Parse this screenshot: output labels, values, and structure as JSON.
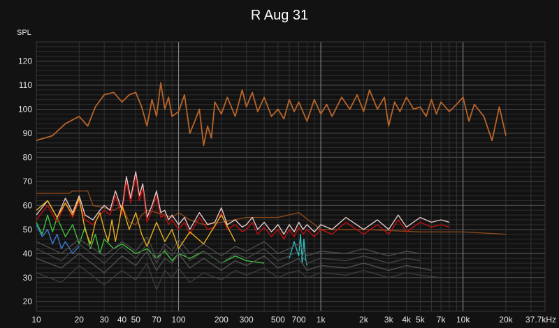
{
  "chart_data": {
    "type": "line",
    "title": "R Aug 31",
    "ylabel": "SPL",
    "xlabel": "",
    "xscale": "log",
    "xlim": [
      10,
      37700
    ],
    "ylim": [
      16,
      128
    ],
    "yticks": [
      120,
      110,
      100,
      90,
      80,
      70,
      60,
      50,
      40,
      30,
      20
    ],
    "xticks": [
      {
        "value": 10,
        "label": "10"
      },
      {
        "value": 20,
        "label": "20"
      },
      {
        "value": 30,
        "label": "30"
      },
      {
        "value": 40,
        "label": "40"
      },
      {
        "value": 50,
        "label": "50"
      },
      {
        "value": 70,
        "label": "70"
      },
      {
        "value": 100,
        "label": "100"
      },
      {
        "value": 200,
        "label": "200"
      },
      {
        "value": 300,
        "label": "300"
      },
      {
        "value": 500,
        "label": "500"
      },
      {
        "value": 700,
        "label": "700"
      },
      {
        "value": 1000,
        "label": "1k"
      },
      {
        "value": 2000,
        "label": "2k"
      },
      {
        "value": 3000,
        "label": "3k"
      },
      {
        "value": 4000,
        "label": "4k"
      },
      {
        "value": 5000,
        "label": "5k"
      },
      {
        "value": 7000,
        "label": "7k"
      },
      {
        "value": 10000,
        "label": "10k"
      },
      {
        "value": 20000,
        "label": "20k"
      },
      {
        "value": 37700,
        "label": "37.7kHz"
      }
    ],
    "grid": true,
    "legend": "none",
    "series": [
      {
        "color": "#b8642a",
        "x": [
          10,
          13,
          16,
          20,
          23,
          26,
          30,
          35,
          40,
          45,
          50,
          55,
          60,
          65,
          70,
          75,
          80,
          85,
          90,
          100,
          110,
          120,
          130,
          140,
          150,
          160,
          170,
          180,
          200,
          220,
          250,
          280,
          300,
          330,
          360,
          400,
          450,
          500,
          550,
          600,
          650,
          700,
          800,
          900,
          1000,
          1100,
          1200,
          1400,
          1600,
          1800,
          2000,
          2200,
          2500,
          2800,
          3000,
          3300,
          3600,
          4000,
          4500,
          5000,
          5500,
          6000,
          6500,
          7000,
          8000,
          9000,
          10000,
          11000,
          12000,
          14000,
          16000,
          18000,
          20000
        ],
        "values": [
          87,
          89,
          94,
          97,
          93,
          101,
          106,
          107,
          103,
          106,
          107,
          101,
          93,
          104,
          97,
          111,
          100,
          105,
          97,
          99,
          106,
          90,
          95,
          100,
          85,
          93,
          88,
          103,
          98,
          105,
          97,
          108,
          101,
          107,
          99,
          105,
          97,
          100,
          96,
          104,
          99,
          103,
          95,
          104,
          98,
          102,
          97,
          105,
          100,
          106,
          99,
          108,
          100,
          105,
          93,
          103,
          99,
          105,
          100,
          101,
          97,
          104,
          98,
          103,
          99,
          102,
          105,
          95,
          102,
          97,
          87,
          101,
          89
        ]
      },
      {
        "color": "#8b4a1a",
        "x": [
          10,
          14,
          17,
          18,
          20,
          22,
          23,
          25,
          30,
          35,
          40,
          45,
          50,
          55,
          60,
          70,
          80,
          90,
          100,
          120,
          150,
          200,
          300,
          500,
          700,
          1000,
          2000,
          5000,
          10000,
          20000
        ],
        "values": [
          65,
          65,
          65,
          66,
          66,
          66,
          66,
          60,
          59,
          58,
          60,
          53,
          52,
          56,
          58,
          57,
          56,
          55,
          57,
          54,
          52,
          53,
          55,
          55,
          57,
          50,
          50,
          49,
          49,
          48
        ]
      },
      {
        "color": "#e8c8c8",
        "x": [
          10,
          12,
          14,
          16,
          18,
          20,
          22,
          25,
          28,
          30,
          33,
          36,
          40,
          43,
          46,
          50,
          53,
          56,
          60,
          65,
          70,
          75,
          80,
          85,
          90,
          100,
          110,
          120,
          140,
          160,
          180,
          200,
          220,
          250,
          280,
          300,
          330,
          360,
          400,
          450,
          500,
          550,
          600,
          650,
          700,
          750,
          800,
          900,
          1000,
          1200,
          1500,
          2000,
          2500,
          3000,
          3500,
          4000,
          5000,
          6000,
          7000,
          8000
        ],
        "values": [
          56,
          62,
          55,
          63,
          57,
          64,
          56,
          54,
          58,
          60,
          58,
          66,
          58,
          72,
          63,
          74,
          64,
          69,
          55,
          60,
          66,
          57,
          58,
          54,
          56,
          52,
          55,
          50,
          57,
          52,
          53,
          59,
          52,
          54,
          51,
          52,
          55,
          50,
          53,
          49,
          52,
          48,
          52,
          49,
          53,
          50,
          52,
          49,
          52,
          50,
          55,
          50,
          54,
          50,
          56,
          51,
          55,
          53,
          54,
          53
        ]
      },
      {
        "color": "#c01010",
        "x": [
          10,
          12,
          14,
          16,
          18,
          20,
          22,
          25,
          28,
          30,
          33,
          36,
          40,
          43,
          46,
          50,
          53,
          56,
          60,
          65,
          70,
          75,
          80,
          85,
          90,
          100,
          110,
          120,
          140,
          160,
          180,
          200,
          220,
          250,
          280,
          300,
          330,
          360,
          400,
          450,
          500,
          550,
          600,
          650,
          700,
          750,
          800,
          900,
          1000,
          1200,
          1500,
          2000,
          2500,
          3000,
          3500,
          4000,
          5000,
          6000,
          7000,
          8000
        ],
        "values": [
          54,
          60,
          53,
          61,
          55,
          62,
          54,
          52,
          56,
          58,
          56,
          64,
          56,
          70,
          61,
          72,
          62,
          67,
          53,
          58,
          64,
          55,
          56,
          52,
          54,
          50,
          53,
          48,
          55,
          50,
          51,
          57,
          50,
          52,
          49,
          50,
          53,
          48,
          51,
          47,
          50,
          46,
          50,
          47,
          51,
          48,
          50,
          47,
          50,
          48,
          53,
          48,
          52,
          48,
          54,
          49,
          53,
          51,
          52,
          51
        ]
      },
      {
        "color": "#e8b020",
        "x": [
          10,
          12,
          14,
          16,
          18,
          20,
          22,
          24,
          26,
          28,
          30,
          32,
          34,
          36,
          38,
          40,
          45,
          50,
          55,
          60,
          70,
          80,
          90,
          100,
          120,
          150,
          200,
          250
        ],
        "values": [
          58,
          62,
          55,
          61,
          56,
          63,
          50,
          44,
          53,
          57,
          50,
          45,
          54,
          45,
          52,
          60,
          50,
          57,
          48,
          43,
          53,
          45,
          50,
          42,
          49,
          44,
          56,
          45
        ]
      },
      {
        "color": "#40c040",
        "x": [
          10,
          11,
          12,
          13,
          14,
          16,
          18,
          20,
          22,
          24,
          26,
          28,
          30,
          35,
          40,
          50,
          60,
          70,
          80,
          90,
          100,
          120,
          150,
          200,
          250,
          300,
          400
        ],
        "values": [
          53,
          48,
          56,
          49,
          55,
          47,
          52,
          44,
          51,
          42,
          48,
          40,
          46,
          42,
          44,
          40,
          42,
          38,
          41,
          37,
          40,
          38,
          41,
          36,
          39,
          37,
          36
        ]
      },
      {
        "color": "#30c0c0",
        "x": [
          600,
          650,
          700,
          720,
          740,
          760,
          780,
          800
        ],
        "values": [
          38,
          45,
          39,
          48,
          36,
          46,
          38,
          35
        ]
      },
      {
        "color": "#3a7ad0",
        "x": [
          10,
          11,
          12,
          13,
          14,
          15,
          16,
          18,
          20
        ],
        "values": [
          52,
          47,
          50,
          44,
          48,
          42,
          45,
          40,
          43
        ]
      },
      {
        "color": "#505050",
        "x": [
          10,
          15,
          20,
          30,
          40,
          50,
          60,
          70,
          80,
          90,
          100,
          120,
          150,
          200,
          250,
          300,
          400,
          500,
          600,
          700,
          800,
          1000,
          1500,
          2000,
          3000,
          4000,
          5000,
          6000
        ],
        "values": [
          38,
          34,
          40,
          32,
          39,
          35,
          41,
          33,
          38,
          36,
          40,
          34,
          38,
          33,
          37,
          35,
          39,
          34,
          36,
          38,
          33,
          35,
          34,
          36,
          33,
          35,
          34,
          33
        ]
      },
      {
        "color": "#444444",
        "x": [
          10,
          15,
          20,
          30,
          40,
          50,
          60,
          70,
          80,
          90,
          100,
          120,
          150,
          200,
          250,
          300,
          400,
          500,
          600,
          700,
          800,
          1000,
          1500,
          2000,
          3000,
          4000,
          5000
        ],
        "values": [
          42,
          37,
          44,
          36,
          43,
          38,
          44,
          36,
          42,
          39,
          43,
          37,
          41,
          36,
          40,
          38,
          42,
          37,
          39,
          41,
          36,
          38,
          37,
          39,
          36,
          38,
          37
        ]
      },
      {
        "color": "#3c3c3c",
        "x": [
          10,
          15,
          20,
          30,
          40,
          50,
          60,
          70,
          80,
          90,
          100,
          120,
          150,
          200,
          250,
          300,
          400,
          500,
          600,
          700,
          800,
          1000,
          1500,
          2000,
          3000,
          4000,
          5000,
          7000
        ],
        "values": [
          32,
          28,
          35,
          27,
          33,
          29,
          36,
          25,
          33,
          30,
          34,
          28,
          32,
          29,
          33,
          31,
          34,
          30,
          32,
          33,
          30,
          32,
          31,
          33,
          30,
          32,
          31,
          30
        ]
      },
      {
        "color": "#4a4a4a",
        "x": [
          10,
          15,
          20,
          30,
          40,
          50,
          60,
          70,
          80,
          90,
          100,
          120,
          150,
          200,
          250,
          300,
          400,
          500,
          600,
          700,
          800,
          1000,
          1500,
          2000,
          3000,
          4000,
          5000
        ],
        "values": [
          45,
          40,
          46,
          39,
          45,
          41,
          47,
          38,
          44,
          41,
          46,
          40,
          44,
          39,
          43,
          41,
          45,
          40,
          42,
          44,
          39,
          41,
          40,
          42,
          39,
          41,
          40
        ]
      }
    ]
  }
}
